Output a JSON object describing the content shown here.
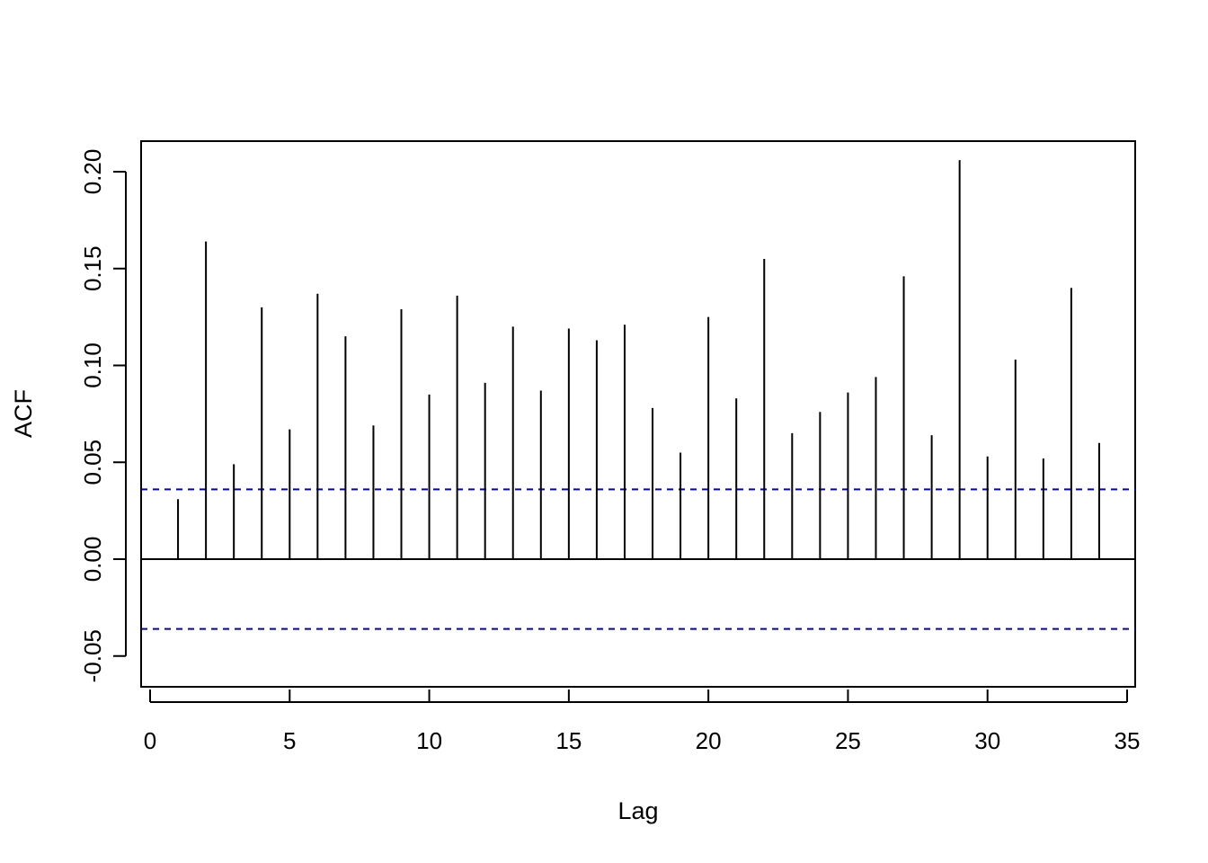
{
  "chart_data": {
    "type": "bar",
    "subtype": "acf-stem",
    "title": "",
    "xlabel": "Lag",
    "ylabel": "ACF",
    "xlim": [
      0,
      35
    ],
    "ylim": [
      -0.065,
      0.215
    ],
    "x_ticks": [
      0,
      5,
      10,
      15,
      20,
      25,
      30,
      35
    ],
    "x_tick_labels": [
      "0",
      "5",
      "10",
      "15",
      "20",
      "25",
      "30",
      "35"
    ],
    "y_ticks": [
      -0.05,
      0.0,
      0.05,
      0.1,
      0.15,
      0.2
    ],
    "y_tick_labels": [
      "-0.05",
      "0.00",
      "0.05",
      "0.10",
      "0.15",
      "0.20"
    ],
    "grid": false,
    "confidence_bound": 0.036,
    "confidence_color": "#0000cc",
    "zero_line": true,
    "lags": [
      1,
      2,
      3,
      4,
      5,
      6,
      7,
      8,
      9,
      10,
      11,
      12,
      13,
      14,
      15,
      16,
      17,
      18,
      19,
      20,
      21,
      22,
      23,
      24,
      25,
      26,
      27,
      28,
      29,
      30,
      31,
      32,
      33,
      34
    ],
    "values": [
      0.031,
      0.164,
      0.049,
      0.13,
      0.067,
      0.137,
      0.115,
      0.069,
      0.129,
      0.085,
      0.136,
      0.091,
      0.12,
      0.087,
      0.119,
      0.113,
      0.121,
      0.078,
      0.055,
      0.125,
      0.083,
      0.155,
      0.065,
      0.076,
      0.086,
      0.094,
      0.146,
      0.064,
      0.206,
      0.053,
      0.103,
      0.052,
      0.14,
      0.06
    ],
    "stem_color": "#000000"
  }
}
